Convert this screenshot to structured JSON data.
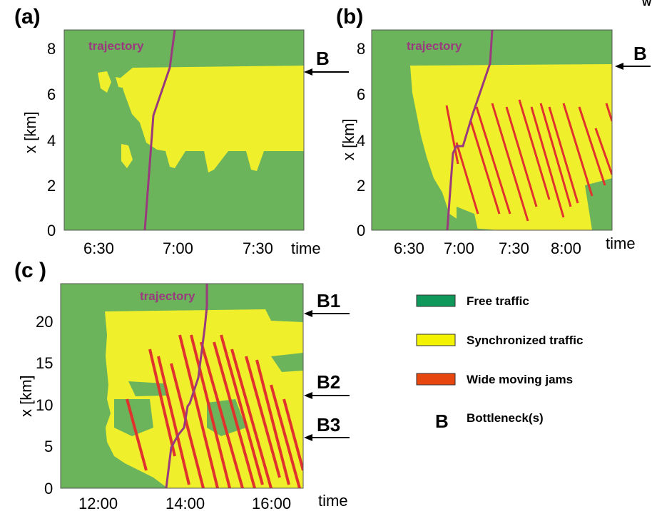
{
  "colors": {
    "free": "#6cb45c",
    "synchronized": "#f0ef2c",
    "jam": "#e0332e",
    "trajectory": "#9a3a7e",
    "legend_free": "#10985a",
    "legend_sync": "#f3f200",
    "legend_jam": "#e8460f"
  },
  "corner_text": "W",
  "chart_data": [
    {
      "panel": "(a)",
      "type": "heatmap",
      "xlabel": "time",
      "ylabel": "x [km]",
      "xlim": [
        "6:10",
        "7:45"
      ],
      "ylim": [
        0,
        8.8
      ],
      "x_ticks": [
        "6:30",
        "7:00",
        "7:30"
      ],
      "y_ticks": [
        "0",
        "2",
        "4",
        "6",
        "8"
      ],
      "trajectory_label": "trajectory",
      "trajectory": [
        {
          "t": "6:47",
          "x": 0
        },
        {
          "t": "6:51",
          "x": 5
        },
        {
          "t": "6:58",
          "x": 7.2
        },
        {
          "t": "7:00",
          "x": 8.8
        }
      ],
      "synchronized_region": "x 3.7-7.2 km from ~6:37 to 7:45",
      "bottlenecks": [
        {
          "label": "B",
          "x": 7.2
        }
      ]
    },
    {
      "panel": "(b)",
      "type": "heatmap",
      "xlabel": "time",
      "ylabel": "x [km]",
      "xlim": [
        "6:10",
        "8:15"
      ],
      "ylim": [
        0,
        8.8
      ],
      "x_ticks": [
        "6:30",
        "7:00",
        "7:30",
        "8:00"
      ],
      "y_ticks": [
        "0",
        "2",
        "4",
        "6",
        "8"
      ],
      "trajectory_label": "trajectory",
      "trajectory": [
        {
          "t": "6:53",
          "x": 0
        },
        {
          "t": "6:56",
          "x": 3.3
        },
        {
          "t": "6:59",
          "x": 3.6
        },
        {
          "t": "7:06",
          "x": 5
        },
        {
          "t": "7:14",
          "x": 7.2
        },
        {
          "t": "7:15",
          "x": 8.8
        }
      ],
      "synchronized_region": "x 0-7.2 km from ~6:35 to 8:15",
      "wide_moving_jams": "many narrow jams propagating upstream from x≈5.5 km",
      "bottlenecks": [
        {
          "label": "B",
          "x": 7.2
        }
      ]
    },
    {
      "panel": "(c )",
      "type": "heatmap",
      "xlabel": "time",
      "ylabel": "x [km]",
      "xlim": [
        "11:00",
        "16:30"
      ],
      "ylim": [
        0,
        24
      ],
      "x_ticks": [
        "12:00",
        "14:00",
        "16:00"
      ],
      "y_ticks": [
        "0",
        "5",
        "10",
        "15",
        "20"
      ],
      "trajectory_label": "trajectory",
      "trajectory": [
        {
          "t": "13:25",
          "x": 0
        },
        {
          "t": "13:35",
          "x": 5
        },
        {
          "t": "13:45",
          "x": 7
        },
        {
          "t": "13:50",
          "x": 10
        },
        {
          "t": "14:00",
          "x": 12
        },
        {
          "t": "14:10",
          "x": 17
        },
        {
          "t": "14:15",
          "x": 21
        },
        {
          "t": "14:17",
          "x": 24
        }
      ],
      "synchronized_region": "x 2-21.5 km from ~11:45 to 16:30",
      "wide_moving_jams": "many jams propagating upstream from x≈15 km after ~12:30",
      "bottlenecks": [
        {
          "label": "B1",
          "x": 21.5
        },
        {
          "label": "B2",
          "x": 11
        },
        {
          "label": "B3",
          "x": 6
        }
      ]
    }
  ],
  "legend": [
    {
      "key": "free",
      "label": "Free traffic"
    },
    {
      "key": "sync",
      "label": "Synchronized traffic"
    },
    {
      "key": "jam",
      "label": "Wide moving jams"
    },
    {
      "key": "bottleneck",
      "symbol": "B",
      "label": "Bottleneck(s)"
    }
  ]
}
